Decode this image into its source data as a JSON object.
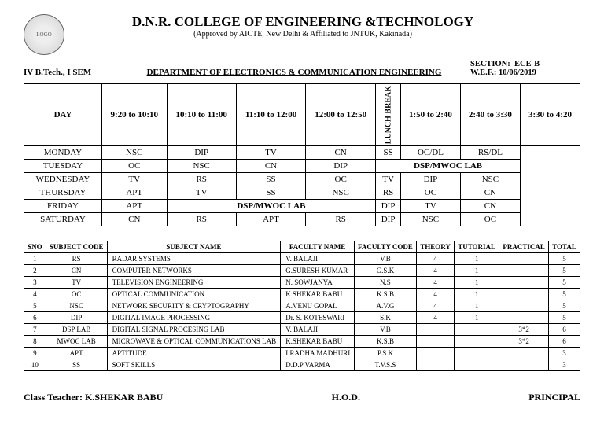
{
  "header": {
    "college": "D.N.R. COLLEGE OF ENGINEERING &TECHNOLOGY",
    "approval": "(Approved by AICTE, New Delhi & Affiliated to JNTUK, Kakinada)",
    "class": "IV B.Tech., I SEM",
    "dept": "DEPARTMENT OF ELECTRONICS & COMMUNICATION ENGINEERING",
    "section_label": "SECTION:",
    "section": "ECE-B",
    "wef_label": "W.E.F.:",
    "wef": "10/06/2019"
  },
  "timetable": {
    "day_header": "DAY",
    "periods": [
      "9:20 to 10:10",
      "10:10 to 11:00",
      "11:10 to 12:00",
      "12:00 to 12:50",
      "1:50 to 2:40",
      "2:40 to 3:30",
      "3:30 to 4:20"
    ],
    "lunch": "LUNCH BREAK",
    "rows": [
      {
        "day": "MONDAY",
        "am": [
          "NSC",
          "DIP",
          "TV",
          "CN"
        ],
        "pm": [
          "SS",
          "OC/DL",
          "RS/DL"
        ]
      },
      {
        "day": "TUESDAY",
        "am": [
          "OC",
          "NSC",
          "CN",
          "DIP"
        ],
        "pm_merge": "DSP/MWOC LAB"
      },
      {
        "day": "WEDNESDAY",
        "am": [
          "TV",
          "RS",
          "SS",
          "OC"
        ],
        "pm": [
          "TV",
          "DIP",
          "NSC"
        ]
      },
      {
        "day": "THURSDAY",
        "am": [
          "APT",
          "TV",
          "SS",
          "NSC"
        ],
        "pm": [
          "RS",
          "OC",
          "CN"
        ]
      },
      {
        "day": "FRIDAY",
        "am_first": "APT",
        "am_merge": "DSP/MWOC LAB",
        "pm": [
          "DIP",
          "TV",
          "CN"
        ]
      },
      {
        "day": "SATURDAY",
        "am": [
          "CN",
          "RS",
          "APT",
          "RS"
        ],
        "pm": [
          "DIP",
          "NSC",
          "OC"
        ]
      }
    ]
  },
  "subjects": {
    "headers": [
      "SNO",
      "SUBJECT CODE",
      "SUBJECT NAME",
      "FACULTY NAME",
      "FACULTY CODE",
      "THEORY",
      "TUTORIAL",
      "PRACTICAL",
      "TOTAL"
    ],
    "rows": [
      [
        "1",
        "RS",
        "RADAR SYSTEMS",
        "V. BALAJI",
        "V.B",
        "4",
        "1",
        "",
        "5"
      ],
      [
        "2",
        "CN",
        "COMPUTER NETWORKS",
        "G.SURESH KUMAR",
        "G.S.K",
        "4",
        "1",
        "",
        "5"
      ],
      [
        "3",
        "TV",
        "TELEVISION ENGINEERING",
        "N. SOWJANYA",
        "N.S",
        "4",
        "1",
        "",
        "5"
      ],
      [
        "4",
        "OC",
        "OPTICAL COMMUNICATION",
        "K.SHEKAR BABU",
        "K.S.B",
        "4",
        "1",
        "",
        "5"
      ],
      [
        "5",
        "NSC",
        "NETWORK SECURITY & CRYPTOGRAPHY",
        "A.VENU GOPAL",
        "A.V.G",
        "4",
        "1",
        "",
        "5"
      ],
      [
        "6",
        "DIP",
        "DIGITAL IMAGE PROCESSING",
        "Dr. S. KOTESWARI",
        "S.K",
        "4",
        "1",
        "",
        "5"
      ],
      [
        "7",
        "DSP LAB",
        "DIGITAL SIGNAL PROCESING LAB",
        "V. BALAJI",
        "V.B",
        "",
        "",
        "3*2",
        "6"
      ],
      [
        "8",
        "MWOC LAB",
        "MICROWAVE & OPTICAL COMMUNICATIONS LAB",
        "K.SHEKAR BABU",
        "K.S.B",
        "",
        "",
        "3*2",
        "6"
      ],
      [
        "9",
        "APT",
        "APTITUDE",
        "I.RADHA MADHURI",
        "P.S.K",
        "",
        "",
        "",
        "3"
      ],
      [
        "10",
        "SS",
        "SOFT SKILLS",
        "D.D.P  VARMA",
        "T.V.S.S",
        "",
        "",
        "",
        "3"
      ]
    ]
  },
  "footer": {
    "teacher_label": "Class Teacher:",
    "teacher": "K.SHEKAR BABU",
    "hod": "H.O.D.",
    "principal": "PRINCIPAL"
  },
  "colors": {
    "border": "#000000",
    "bg": "#ffffff"
  }
}
